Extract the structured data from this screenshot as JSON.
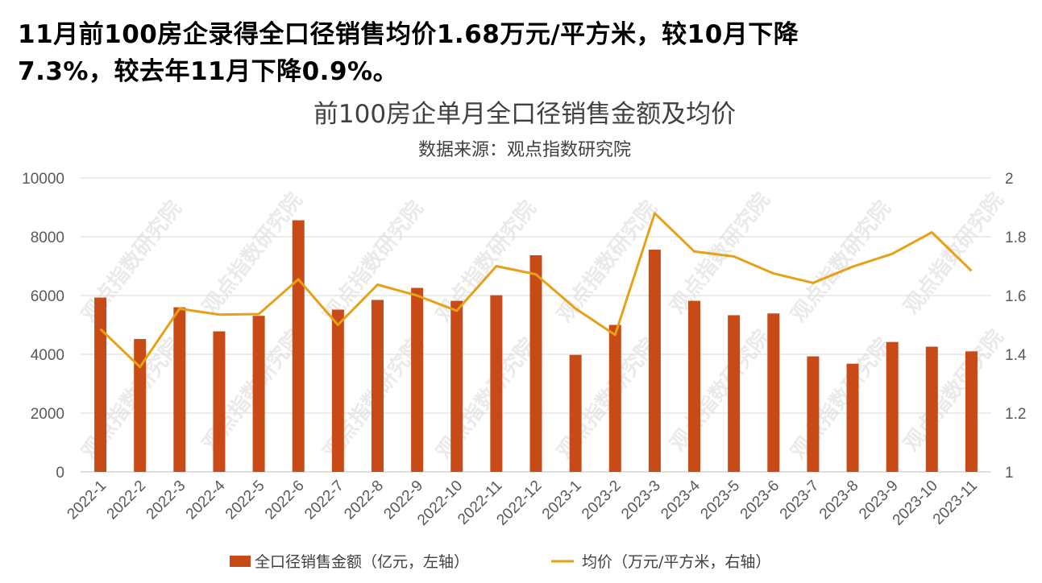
{
  "headline": {
    "line1": "11月前100房企录得全口径销售均价1.68万元/平方米，较10月下降",
    "line2": "7.3%，较去年11月下降0.9%。"
  },
  "watermark": "观点指数研究院",
  "chart_data": {
    "type": "bar",
    "title": "前100房企单月全口径销售金额及均价",
    "subtitle": "数据来源：观点指数研究院",
    "categories": [
      "2022-1",
      "2022-2",
      "2022-3",
      "2022-4",
      "2022-5",
      "2022-6",
      "2022-7",
      "2022-8",
      "2022-9",
      "2022-10",
      "2022-11",
      "2022-12",
      "2023-1",
      "2023-2",
      "2023-3",
      "2023-4",
      "2023-5",
      "2023-6",
      "2023-7",
      "2023-8",
      "2023-9",
      "2023-10",
      "2023-11"
    ],
    "series": [
      {
        "name": "全口径销售金额（亿元，左轴）",
        "type": "bar",
        "axis": "left",
        "color": "#C84B17",
        "values": [
          5930,
          4520,
          5600,
          4780,
          5310,
          8560,
          5520,
          5850,
          6260,
          5820,
          6010,
          7370,
          3980,
          5000,
          7560,
          5820,
          5330,
          5390,
          3930,
          3680,
          4420,
          4260,
          4100
        ]
      },
      {
        "name": "均价（万元/平方米，右轴）",
        "type": "line",
        "axis": "right",
        "color": "#E6A117",
        "values": [
          1.486,
          1.357,
          1.555,
          1.535,
          1.537,
          1.655,
          1.5,
          1.637,
          1.6,
          1.548,
          1.7,
          1.672,
          1.556,
          1.466,
          1.88,
          1.75,
          1.733,
          1.675,
          1.643,
          1.698,
          1.742,
          1.815,
          1.684
        ]
      }
    ],
    "y_left": {
      "ylim": [
        0,
        10000
      ],
      "ticks": [
        "0",
        "2000",
        "4000",
        "6000",
        "8000",
        "10000"
      ]
    },
    "y_right": {
      "ylim": [
        1,
        2
      ],
      "ticks": [
        "1",
        "1.2",
        "1.4",
        "1.6",
        "1.8",
        "2"
      ]
    },
    "grid": true,
    "legend_position": "bottom"
  }
}
